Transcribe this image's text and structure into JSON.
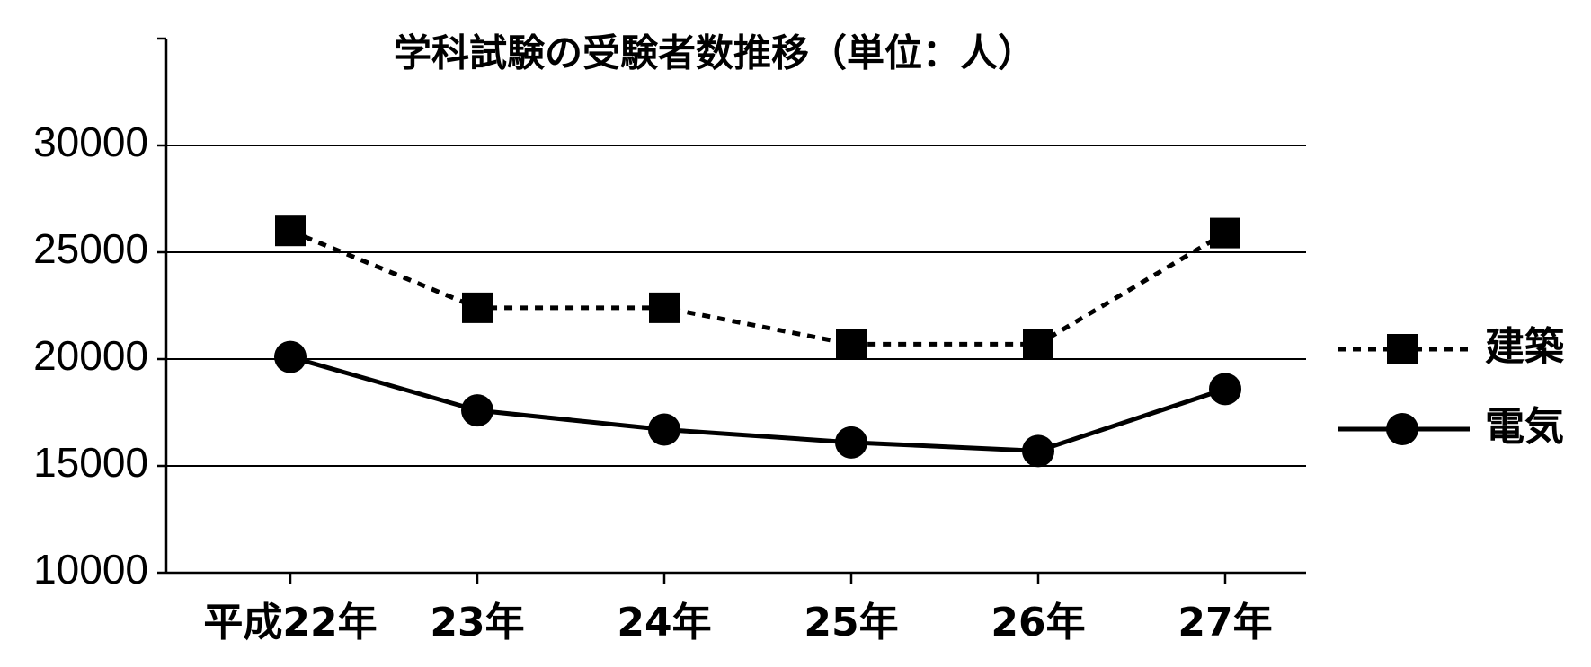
{
  "chart_data": {
    "type": "line",
    "title": "学科試験の受験者数推移（単位：人）",
    "categories": [
      "平成22年",
      "23年",
      "24年",
      "25年",
      "26年",
      "27年"
    ],
    "series": [
      {
        "name": "建築",
        "color": "#000000",
        "line_style": "dotted",
        "marker": "square",
        "values": [
          26000,
          22400,
          22400,
          20700,
          20700,
          25900
        ]
      },
      {
        "name": "電気",
        "color": "#000000",
        "line_style": "solid",
        "marker": "circle",
        "values": [
          20100,
          17600,
          16700,
          16100,
          15700,
          18600
        ]
      }
    ],
    "ylim": [
      10000,
      35000
    ],
    "yticks": [
      10000,
      15000,
      20000,
      25000,
      30000
    ],
    "grid": true,
    "legend": "right"
  }
}
